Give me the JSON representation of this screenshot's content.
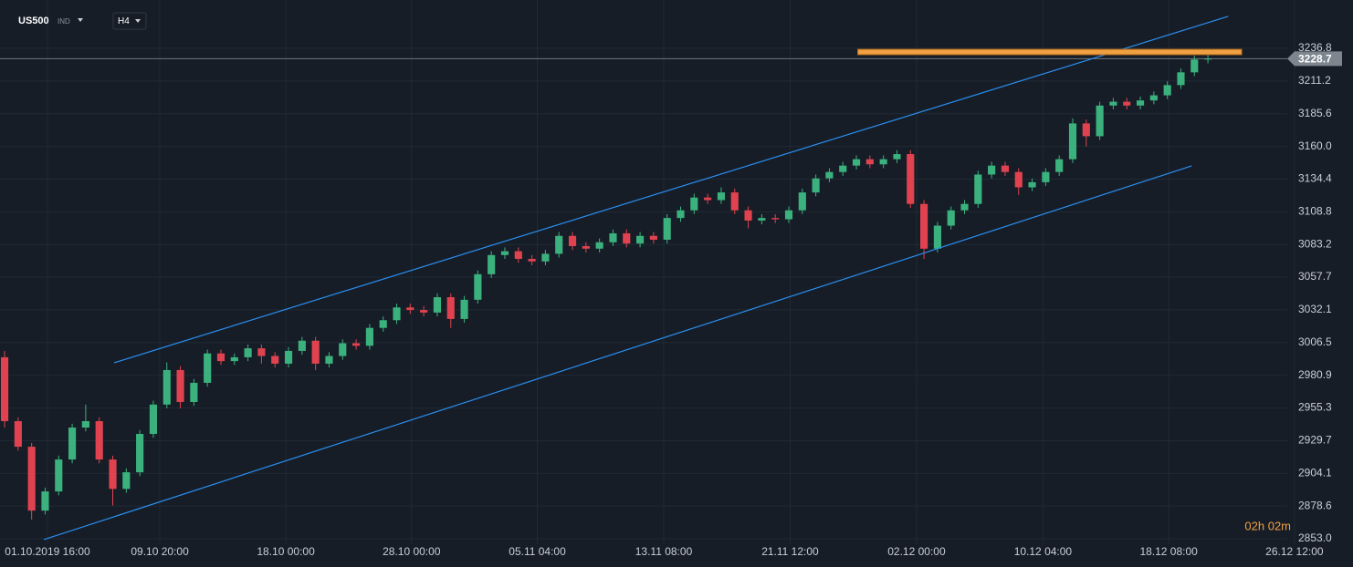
{
  "chart_data": {
    "type": "candlestick",
    "symbol": "US500",
    "symbol_tag": "IND",
    "timeframe": "H4",
    "timer": "02h 02m",
    "up_color": "#3bb27e",
    "down_color": "#e0434f",
    "grid": true,
    "ylim": [
      2848.7,
      3274.6
    ],
    "yticks": [
      3236.8,
      3211.2,
      3185.6,
      {
        "value": 3160,
        "label": "3160.0"
      },
      3134.4,
      3108.8,
      3083.2,
      3057.7,
      3032.1,
      3006.5,
      2980.9,
      2955.3,
      2929.7,
      2904.1,
      2878.6,
      {
        "value": 2853,
        "label": "2853.0"
      }
    ],
    "xlim": [
      -0.34,
      99.73
    ],
    "xticks": [
      {
        "value": 3.17,
        "label": "01.10.2019  16:00"
      },
      {
        "value": 11.48,
        "label": "09.10  20:00"
      },
      {
        "value": 20.8,
        "label": "18.10  00:00"
      },
      {
        "value": 30.1,
        "label": "28.10  00:00"
      },
      {
        "value": 39.4,
        "label": "05.11  04:00"
      },
      {
        "value": 48.75,
        "label": "13.11  08:00"
      },
      {
        "value": 58.1,
        "label": "21.11  12:00"
      },
      {
        "value": 67.45,
        "label": "02.12  00:00"
      },
      {
        "value": 76.8,
        "label": "10.12  04:00"
      },
      {
        "value": 86.1,
        "label": "18.12  08:00"
      },
      {
        "value": 95.4,
        "label": "26.12  12:00"
      }
    ],
    "current_price": 3228.7,
    "open": [
      2995,
      2945,
      2925,
      2875,
      2890,
      2915,
      2940,
      2945,
      2915,
      2892,
      2905,
      2935,
      2958,
      2985,
      2960,
      2975,
      2998,
      2992,
      2995,
      3002,
      2996,
      2990,
      3000,
      3008,
      2990,
      2996,
      3006,
      3004,
      3018,
      3024,
      3034,
      3032,
      3030,
      3042,
      3025,
      3040,
      3060,
      3075,
      3078,
      3072,
      3070,
      3076,
      3090,
      3082,
      3080,
      3085,
      3092,
      3084,
      3090,
      3087,
      3104,
      3110,
      3120,
      3118,
      3124,
      3110,
      3102,
      3104,
      3103,
      3110,
      3124,
      3135,
      3140,
      3145,
      3150,
      3146,
      3150,
      3154,
      3115,
      3080,
      3098,
      3110,
      3115,
      3138,
      3145,
      3140,
      3128,
      3132,
      3140,
      3150,
      3178,
      3168,
      3192,
      3195,
      3192,
      3196,
      3200,
      3208,
      3218,
      3228
    ],
    "high": [
      3000,
      2948,
      2928,
      2893,
      2918,
      2943,
      2958,
      2948,
      2918,
      2908,
      2938,
      2961,
      2991,
      2988,
      2978,
      3001,
      3001,
      2998,
      3005,
      3005,
      2999,
      3003,
      3011,
      3011,
      2999,
      3009,
      3009,
      3021,
      3027,
      3037,
      3037,
      3035,
      3045,
      3045,
      3043,
      3063,
      3078,
      3081,
      3081,
      3075,
      3079,
      3093,
      3093,
      3085,
      3088,
      3095,
      3095,
      3093,
      3093,
      3107,
      3113,
      3123,
      3123,
      3128,
      3127,
      3113,
      3107,
      3107,
      3113,
      3127,
      3138,
      3143,
      3148,
      3153,
      3153,
      3153,
      3157,
      3157,
      3118,
      3101,
      3113,
      3118,
      3141,
      3148,
      3148,
      3143,
      3135,
      3143,
      3153,
      3182,
      3181,
      3195,
      3198,
      3198,
      3199,
      3203,
      3211,
      3221,
      3231,
      3231.5
    ],
    "low": [
      2940,
      2922,
      2868,
      2872,
      2887,
      2912,
      2937,
      2912,
      2879,
      2889,
      2902,
      2932,
      2955,
      2955,
      2957,
      2972,
      2989,
      2989,
      2992,
      2990,
      2987,
      2987,
      2997,
      2985,
      2987,
      2993,
      3001,
      3001,
      3015,
      3021,
      3029,
      3027,
      3027,
      3018,
      3022,
      3037,
      3057,
      3072,
      3069,
      3067,
      3067,
      3073,
      3079,
      3077,
      3077,
      3082,
      3081,
      3081,
      3084,
      3084,
      3101,
      3107,
      3115,
      3115,
      3107,
      3096,
      3099,
      3100,
      3100,
      3107,
      3121,
      3132,
      3137,
      3142,
      3143,
      3143,
      3147,
      3112,
      3072,
      3077,
      3095,
      3107,
      3112,
      3135,
      3137,
      3122,
      3125,
      3129,
      3137,
      3147,
      3160,
      3165,
      3189,
      3189,
      3189,
      3193,
      3197,
      3205,
      3215,
      3225
    ],
    "close": [
      2945,
      2925,
      2875,
      2890,
      2915,
      2940,
      2945,
      2915,
      2892,
      2905,
      2935,
      2958,
      2985,
      2960,
      2975,
      2998,
      2992,
      2995,
      3002,
      2996,
      2990,
      3000,
      3008,
      2990,
      2996,
      3006,
      3004,
      3018,
      3024,
      3034,
      3032,
      3030,
      3042,
      3025,
      3040,
      3060,
      3075,
      3078,
      3072,
      3070,
      3076,
      3090,
      3082,
      3080,
      3085,
      3092,
      3084,
      3090,
      3087,
      3104,
      3110,
      3120,
      3118,
      3124,
      3110,
      3102,
      3104,
      3103,
      3110,
      3124,
      3135,
      3140,
      3145,
      3150,
      3146,
      3150,
      3154,
      3115,
      3080,
      3098,
      3110,
      3115,
      3138,
      3145,
      3140,
      3128,
      3132,
      3140,
      3150,
      3178,
      3168,
      3192,
      3195,
      3192,
      3196,
      3200,
      3208,
      3218,
      3228,
      3228.7
    ],
    "channel_color": "#2a8ff0",
    "channel": [
      {
        "x": [
          8.1,
          90.5
        ],
        "y": [
          2990.7,
          3261.8
        ]
      },
      {
        "x": [
          2.9,
          87.8
        ],
        "y": [
          2852.3,
          3144.8
        ]
      }
    ],
    "level_color": "#f0a040",
    "level": {
      "x": [
        63.1,
        91.5
      ],
      "value": 3233.9
    }
  }
}
